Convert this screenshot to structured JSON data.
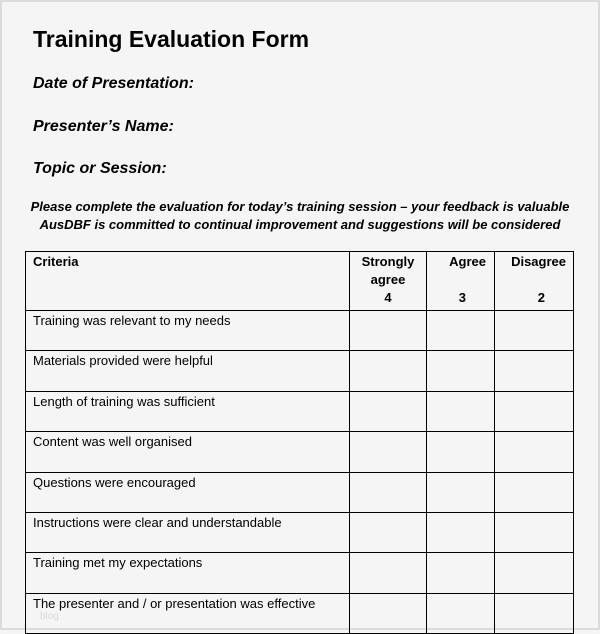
{
  "title": "Training Evaluation Form",
  "fields": [
    "Date of Presentation:",
    "Presenter’s Name:",
    "Topic or Session:"
  ],
  "intro": [
    "Please complete the evaluation for today’s training session – your feedback is valuable",
    "AusDBF is committed to continual improvement and suggestions will be considered"
  ],
  "table": {
    "headers": {
      "criteria": "Criteria",
      "strongly_agree": "Strongly agree",
      "strongly_agree_score": "4",
      "agree": "Agree",
      "agree_score": "3",
      "disagree": "Disagree",
      "disagree_score": "2"
    },
    "rows": [
      "Training was relevant to my needs",
      "Materials provided were helpful",
      "Length of training was sufficient",
      "Content was well organised",
      "Questions were encouraged",
      "Instructions were clear and understandable",
      "Training met my expectations",
      "The presenter and / or presentation was effective"
    ]
  },
  "watermark": "blog"
}
